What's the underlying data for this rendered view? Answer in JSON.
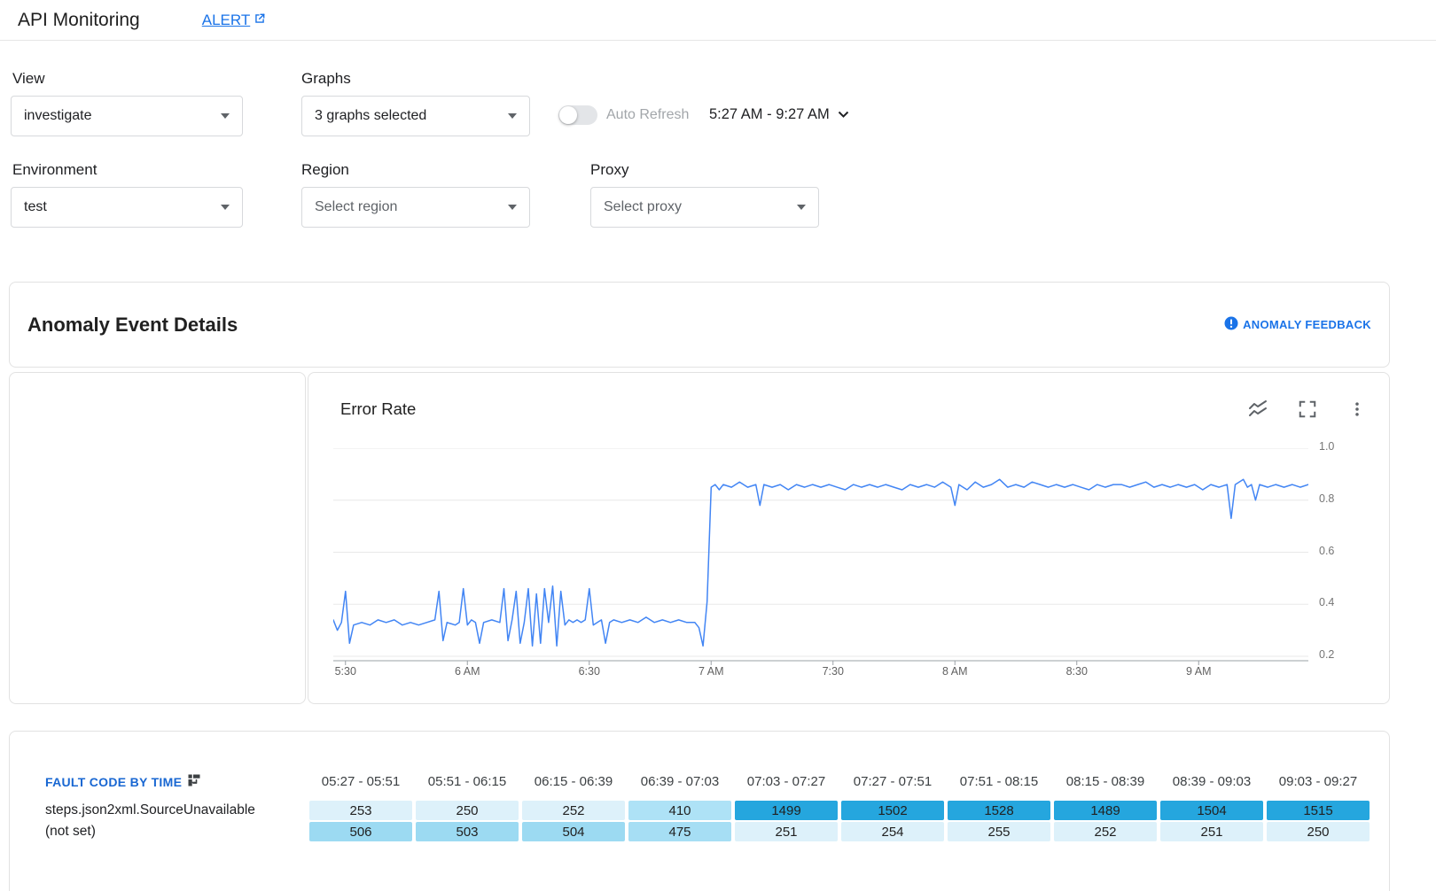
{
  "header": {
    "title": "API Monitoring",
    "alert_label": "ALERT"
  },
  "filters": {
    "view": {
      "label": "View",
      "value": "investigate"
    },
    "graphs": {
      "label": "Graphs",
      "value": "3 graphs selected"
    },
    "auto_refresh": {
      "label": "Auto Refresh",
      "enabled": false
    },
    "time_range": "5:27 AM - 9:27 AM",
    "environment": {
      "label": "Environment",
      "value": "test"
    },
    "region": {
      "label": "Region",
      "value": "Select region"
    },
    "proxy": {
      "label": "Proxy",
      "value": "Select proxy"
    }
  },
  "anomaly_panel": {
    "title": "Anomaly Event Details",
    "feedback_label": "ANOMALY FEEDBACK"
  },
  "icons": {
    "external_link": "open-in-new",
    "dropdown_caret": "caret-down",
    "chevron_down": "chevron-down",
    "alert_badge": "exclamation-circle",
    "stacked_line_chart": "stacked-line-chart",
    "fullscreen": "fullscreen",
    "kebab_menu": "three-dot-menu",
    "pivot_table": "pivot-table"
  },
  "chart_data": {
    "type": "line",
    "title": "Error Rate",
    "time_window": "5:27 AM - 9:27 AM",
    "line_color": "#4285f4",
    "y_ticks": [
      1.0,
      0.8,
      0.6,
      0.4,
      0.2
    ],
    "y_range": [
      0.18,
      1.0
    ],
    "x_range_minutes": [
      0,
      240
    ],
    "x_tick_minutes": [
      3,
      33,
      63,
      93,
      123,
      153,
      183,
      213
    ],
    "x_tick_labels": [
      "5:30",
      "6 AM",
      "6:30",
      "7 AM",
      "7:30",
      "8 AM",
      "8:30",
      "9 AM"
    ],
    "grid": true,
    "legend": "none",
    "points": [
      [
        0,
        0.34
      ],
      [
        1,
        0.3
      ],
      [
        2,
        0.33
      ],
      [
        3,
        0.45
      ],
      [
        4,
        0.25
      ],
      [
        5,
        0.32
      ],
      [
        7,
        0.33
      ],
      [
        9,
        0.32
      ],
      [
        11,
        0.34
      ],
      [
        13,
        0.33
      ],
      [
        15,
        0.34
      ],
      [
        17,
        0.32
      ],
      [
        19,
        0.33
      ],
      [
        21,
        0.32
      ],
      [
        23,
        0.33
      ],
      [
        25,
        0.34
      ],
      [
        26,
        0.45
      ],
      [
        27,
        0.26
      ],
      [
        28,
        0.33
      ],
      [
        30,
        0.32
      ],
      [
        31,
        0.33
      ],
      [
        32,
        0.46
      ],
      [
        33,
        0.32
      ],
      [
        34,
        0.34
      ],
      [
        35,
        0.33
      ],
      [
        36,
        0.25
      ],
      [
        37,
        0.33
      ],
      [
        39,
        0.34
      ],
      [
        41,
        0.33
      ],
      [
        42,
        0.46
      ],
      [
        43,
        0.26
      ],
      [
        44,
        0.34
      ],
      [
        45,
        0.45
      ],
      [
        46,
        0.25
      ],
      [
        47,
        0.33
      ],
      [
        48,
        0.46
      ],
      [
        49,
        0.24
      ],
      [
        50,
        0.44
      ],
      [
        51,
        0.25
      ],
      [
        52,
        0.46
      ],
      [
        53,
        0.33
      ],
      [
        54,
        0.47
      ],
      [
        55,
        0.24
      ],
      [
        56,
        0.45
      ],
      [
        57,
        0.32
      ],
      [
        58,
        0.34
      ],
      [
        59,
        0.33
      ],
      [
        60,
        0.34
      ],
      [
        61,
        0.33
      ],
      [
        62,
        0.34
      ],
      [
        63,
        0.46
      ],
      [
        64,
        0.32
      ],
      [
        65,
        0.33
      ],
      [
        66,
        0.34
      ],
      [
        67,
        0.25
      ],
      [
        68,
        0.33
      ],
      [
        69,
        0.34
      ],
      [
        71,
        0.33
      ],
      [
        73,
        0.34
      ],
      [
        75,
        0.33
      ],
      [
        77,
        0.35
      ],
      [
        79,
        0.33
      ],
      [
        81,
        0.34
      ],
      [
        83,
        0.33
      ],
      [
        85,
        0.34
      ],
      [
        87,
        0.33
      ],
      [
        89,
        0.33
      ],
      [
        90,
        0.31
      ],
      [
        91,
        0.24
      ],
      [
        92,
        0.41
      ],
      [
        93,
        0.85
      ],
      [
        94,
        0.86
      ],
      [
        95,
        0.84
      ],
      [
        96,
        0.86
      ],
      [
        98,
        0.85
      ],
      [
        100,
        0.87
      ],
      [
        102,
        0.85
      ],
      [
        104,
        0.86
      ],
      [
        105,
        0.78
      ],
      [
        106,
        0.86
      ],
      [
        108,
        0.85
      ],
      [
        110,
        0.86
      ],
      [
        112,
        0.84
      ],
      [
        114,
        0.86
      ],
      [
        116,
        0.85
      ],
      [
        118,
        0.86
      ],
      [
        120,
        0.85
      ],
      [
        122,
        0.86
      ],
      [
        124,
        0.85
      ],
      [
        126,
        0.84
      ],
      [
        128,
        0.86
      ],
      [
        130,
        0.85
      ],
      [
        132,
        0.86
      ],
      [
        134,
        0.85
      ],
      [
        136,
        0.86
      ],
      [
        138,
        0.85
      ],
      [
        140,
        0.84
      ],
      [
        142,
        0.86
      ],
      [
        144,
        0.85
      ],
      [
        146,
        0.86
      ],
      [
        148,
        0.85
      ],
      [
        150,
        0.87
      ],
      [
        152,
        0.85
      ],
      [
        153,
        0.78
      ],
      [
        154,
        0.86
      ],
      [
        156,
        0.84
      ],
      [
        158,
        0.87
      ],
      [
        160,
        0.85
      ],
      [
        162,
        0.86
      ],
      [
        164,
        0.88
      ],
      [
        166,
        0.85
      ],
      [
        168,
        0.86
      ],
      [
        170,
        0.85
      ],
      [
        172,
        0.87
      ],
      [
        174,
        0.86
      ],
      [
        176,
        0.85
      ],
      [
        178,
        0.86
      ],
      [
        180,
        0.85
      ],
      [
        182,
        0.86
      ],
      [
        184,
        0.85
      ],
      [
        186,
        0.84
      ],
      [
        188,
        0.86
      ],
      [
        190,
        0.85
      ],
      [
        192,
        0.86
      ],
      [
        194,
        0.86
      ],
      [
        196,
        0.85
      ],
      [
        198,
        0.86
      ],
      [
        200,
        0.87
      ],
      [
        202,
        0.85
      ],
      [
        204,
        0.86
      ],
      [
        206,
        0.85
      ],
      [
        208,
        0.86
      ],
      [
        210,
        0.85
      ],
      [
        212,
        0.86
      ],
      [
        214,
        0.84
      ],
      [
        216,
        0.86
      ],
      [
        218,
        0.85
      ],
      [
        220,
        0.86
      ],
      [
        221,
        0.73
      ],
      [
        222,
        0.86
      ],
      [
        224,
        0.88
      ],
      [
        225,
        0.85
      ],
      [
        226,
        0.86
      ],
      [
        227,
        0.8
      ],
      [
        228,
        0.86
      ],
      [
        230,
        0.85
      ],
      [
        232,
        0.86
      ],
      [
        234,
        0.85
      ],
      [
        236,
        0.86
      ],
      [
        238,
        0.85
      ],
      [
        240,
        0.86
      ]
    ]
  },
  "fault_table": {
    "title": "FAULT CODE BY TIME",
    "columns": [
      "05:27 - 05:51",
      "05:51 - 06:15",
      "06:15 - 06:39",
      "06:39 - 07:03",
      "07:03 - 07:27",
      "07:27 - 07:51",
      "07:51 - 08:15",
      "08:15 - 08:39",
      "08:39 - 09:03",
      "09:03 - 09:27"
    ],
    "rows": [
      {
        "label": "steps.json2xml.SourceUnavailable",
        "values": [
          253,
          250,
          252,
          410,
          1499,
          1502,
          1528,
          1489,
          1504,
          1515
        ],
        "colors": [
          "#ddf1fa",
          "#ddf1fa",
          "#ddf1fa",
          "#aee2f6",
          "#25a6de",
          "#25a6de",
          "#25a6de",
          "#25a6de",
          "#25a6de",
          "#25a6de"
        ]
      },
      {
        "label": "(not set)",
        "values": [
          506,
          503,
          504,
          475,
          251,
          254,
          255,
          252,
          251,
          250
        ],
        "colors": [
          "#9cdaf2",
          "#9cdaf2",
          "#9cdaf2",
          "#a6def4",
          "#ddf1fa",
          "#ddf1fa",
          "#ddf1fa",
          "#ddf1fa",
          "#ddf1fa",
          "#ddf1fa"
        ]
      }
    ]
  }
}
